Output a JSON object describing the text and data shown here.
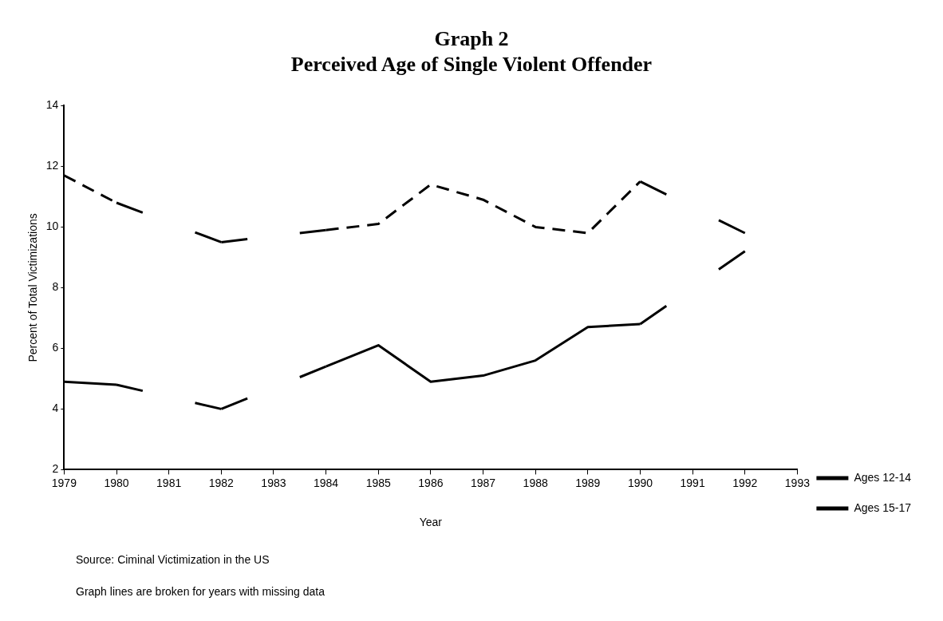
{
  "chart_data": {
    "type": "line",
    "title": [
      "Graph 2",
      "Perceived Age of Single Violent Offender"
    ],
    "xlabel": "Year",
    "ylabel": "Percent of Total Victimizations",
    "x": [
      1979,
      1980,
      1982,
      1984,
      1985,
      1986,
      1987,
      1988,
      1989,
      1990,
      1992
    ],
    "series": [
      {
        "name": "Ages 12-14",
        "color": "#000000",
        "line_style": "solid",
        "values": [
          4.9,
          4.8,
          4.0,
          5.4,
          6.1,
          4.9,
          5.1,
          5.6,
          6.7,
          6.8,
          9.2
        ]
      },
      {
        "name": "Ages 15-17",
        "color": "#000000",
        "line_style": "dashed",
        "values": [
          11.7,
          10.8,
          9.5,
          9.9,
          10.1,
          11.4,
          10.9,
          10.0,
          9.8,
          11.5,
          9.8
        ]
      }
    ],
    "xlim": [
      1979,
      1993
    ],
    "xticks": [
      1979,
      1980,
      1981,
      1982,
      1983,
      1984,
      1985,
      1986,
      1987,
      1988,
      1989,
      1990,
      1991,
      1992,
      1993
    ],
    "ylim": [
      2,
      14
    ],
    "yticks": [
      2,
      4,
      6,
      8,
      10,
      12,
      14
    ],
    "grid": false,
    "legend": "bottom right",
    "marker": "none",
    "annotations": [
      "Source: Ciminal Victimization in the US",
      "Graph lines are broken for years with missing data"
    ]
  }
}
